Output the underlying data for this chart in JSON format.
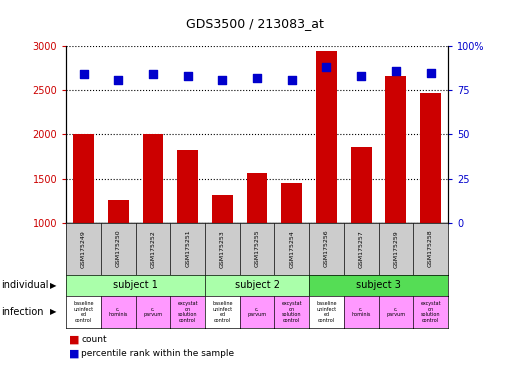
{
  "title": "GDS3500 / 213083_at",
  "samples": [
    "GSM175249",
    "GSM175250",
    "GSM175252",
    "GSM175251",
    "GSM175253",
    "GSM175255",
    "GSM175254",
    "GSM175256",
    "GSM175257",
    "GSM175259",
    "GSM175258"
  ],
  "counts": [
    2010,
    1260,
    2010,
    1820,
    1310,
    1565,
    1450,
    2940,
    1860,
    2660,
    2470
  ],
  "percentile_ranks": [
    84,
    81,
    84,
    83,
    81,
    82,
    81,
    88,
    83,
    86,
    85
  ],
  "ylim_left": [
    1000,
    3000
  ],
  "ylim_right": [
    0,
    100
  ],
  "yticks_left": [
    1000,
    1500,
    2000,
    2500,
    3000
  ],
  "yticks_right": [
    0,
    25,
    50,
    75,
    100
  ],
  "bar_color": "#cc0000",
  "dot_color": "#0000cc",
  "subjects": [
    {
      "label": "subject 1",
      "start": 0,
      "end": 4,
      "color": "#aaffaa"
    },
    {
      "label": "subject 2",
      "start": 4,
      "end": 7,
      "color": "#aaffaa"
    },
    {
      "label": "subject 3",
      "start": 7,
      "end": 11,
      "color": "#55dd55"
    }
  ],
  "infection_labels": [
    "baseline\nuninfect\ned\ncontrol",
    "c.\nhominis",
    "c.\nparvum",
    "excystat\non\nsolution\ncontrol",
    "baseline\nuninfect\ned\ncontrol",
    "c.\nparvum",
    "excystat\non\nsolution\ncontrol",
    "baseline\nuninfect\ned\ncontrol",
    "c.\nhominis",
    "c.\nparvum",
    "excystat\non\nsolution\ncontrol"
  ],
  "infection_colors": [
    "#ffffff",
    "#ff99ff",
    "#ff99ff",
    "#ff99ff",
    "#ffffff",
    "#ff99ff",
    "#ff99ff",
    "#ffffff",
    "#ff99ff",
    "#ff99ff",
    "#ff99ff"
  ],
  "gsm_bg_color": "#cccccc",
  "legend_count_color": "#cc0000",
  "legend_dot_color": "#0000cc"
}
